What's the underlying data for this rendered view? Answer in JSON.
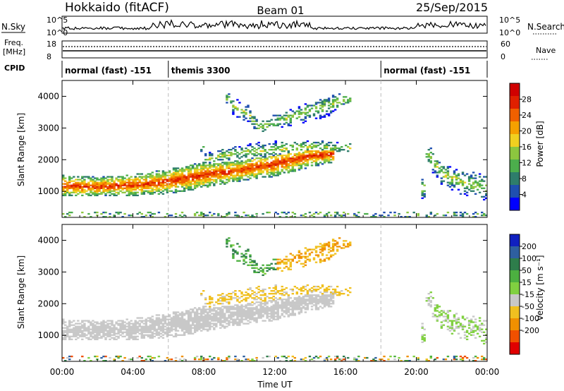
{
  "header": {
    "station": "Hokkaido (fitACF)",
    "beam": "Beam 01",
    "date": "25/Sep/2015"
  },
  "strips": {
    "nsky_label": "N.Sky",
    "nsearch_label": "N.Search",
    "nsky_ticks": [
      "10^5",
      "10^0"
    ],
    "nsearch_ticks": [
      "10^5",
      "10^0"
    ],
    "freq_label_1": "Freq.",
    "freq_label_2": "[MHz]",
    "freq_ticks": [
      "18",
      "8"
    ],
    "nave_label": "Nave",
    "nave_ticks": [
      "60",
      "0"
    ],
    "cpid_label": "CPID",
    "cpid_segments": [
      {
        "label": "normal (fast) -151",
        "start_hour": 0,
        "end_hour": 6
      },
      {
        "label": "themis 3300",
        "start_hour": 6,
        "end_hour": 18
      },
      {
        "label": "normal (fast) -151",
        "start_hour": 18,
        "end_hour": 24
      }
    ]
  },
  "panels": {
    "power": {
      "ylabel": "Slant Range [km]",
      "cbar_label": "Power [dB]"
    },
    "velocity": {
      "ylabel": "Slant Range [km]",
      "cbar_label": "Velocity [m s⁻¹]"
    }
  },
  "xaxis": {
    "label": "Time UT"
  },
  "chart_data": [
    {
      "type": "heatmap",
      "title": "Power",
      "ylabel": "Slant Range [km]",
      "xlabel": "Time UT",
      "xlim": [
        0,
        24
      ],
      "ylim": [
        180,
        4500
      ],
      "x_ticks": [
        "00:00",
        "04:00",
        "08:00",
        "12:00",
        "16:00",
        "20:00",
        "00:00"
      ],
      "y_ticks": [
        1000,
        2000,
        3000,
        4000
      ],
      "colorbar": {
        "label": "Power [dB]",
        "ticks": [
          "4",
          "8",
          "12",
          "16",
          "20",
          "24",
          "28"
        ],
        "range": [
          0,
          32
        ],
        "colors": [
          "#0000ff",
          "#1f4fb0",
          "#2e7d6b",
          "#4cae4c",
          "#8cc63f",
          "#f0d020",
          "#f5a000",
          "#f06000",
          "#e02000",
          "#d00000"
        ]
      },
      "echo_bands": [
        {
          "name": "main",
          "points": [
            [
              0,
              1150,
              240
            ],
            [
              2,
              1130,
              220
            ],
            [
              4,
              1180,
              240
            ],
            [
              6,
              1300,
              280
            ],
            [
              8,
              1500,
              300
            ],
            [
              10,
              1650,
              250
            ],
            [
              12,
              1850,
              280
            ],
            [
              14,
              2100,
              250
            ],
            [
              15,
              2150,
              200
            ]
          ]
        },
        {
          "name": "upper arc",
          "points": [
            [
              8,
              2000,
              150
            ],
            [
              10,
              2200,
              200
            ],
            [
              12,
              2300,
              200
            ],
            [
              14,
              2400,
              150
            ],
            [
              16,
              2350,
              120
            ]
          ]
        },
        {
          "name": "high range",
          "points": [
            [
              9.5,
              3700,
              200
            ],
            [
              10.5,
              3400,
              200
            ],
            [
              11,
              3000,
              150
            ],
            [
              15,
              3700,
              250
            ],
            [
              16,
              3900,
              150
            ]
          ]
        },
        {
          "name": "evening",
          "points": [
            [
              20.5,
              2200,
              250
            ],
            [
              21.5,
              1500,
              300
            ],
            [
              23,
              1200,
              300
            ],
            [
              24,
              1100,
              300
            ]
          ]
        }
      ]
    },
    {
      "type": "heatmap",
      "title": "Velocity",
      "ylabel": "Slant Range [km]",
      "xlabel": "Time UT",
      "xlim": [
        0,
        24
      ],
      "ylim": [
        180,
        4500
      ],
      "x_ticks": [
        "00:00",
        "04:00",
        "08:00",
        "12:00",
        "16:00",
        "20:00",
        "00:00"
      ],
      "y_ticks": [
        1000,
        2000,
        3000,
        4000
      ],
      "colorbar": {
        "label": "Velocity [m s⁻¹]",
        "ticks": [
          "200",
          "100",
          "50",
          "15",
          "-15",
          "-50",
          "-100",
          "-200"
        ],
        "range": [
          -250,
          250
        ],
        "colors": [
          "#1020c0",
          "#2e5fa0",
          "#2e7d4b",
          "#4cb040",
          "#80d040",
          "#c8c8c8",
          "#f0c020",
          "#f09000",
          "#f05000",
          "#e00000"
        ]
      },
      "notes": "ground scatter shown in grey following the power echo bands"
    }
  ],
  "colors": {
    "ground_scatter": "#c8c8c8",
    "dashed_lines": "#bbbbbb"
  }
}
